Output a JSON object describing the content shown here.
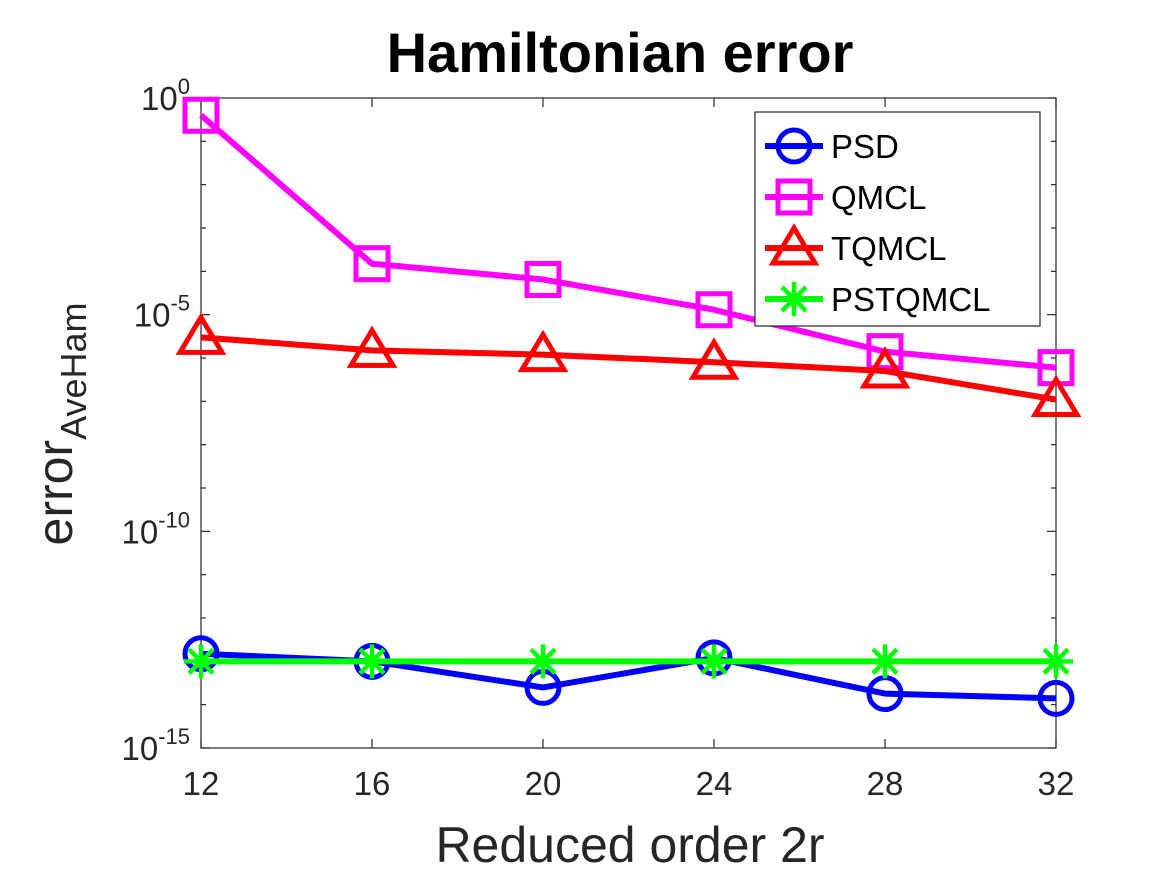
{
  "chart_data": {
    "type": "line",
    "title": "Hamiltonian error",
    "xlabel": "Reduced order 2r",
    "ylabel_main": "error",
    "ylabel_sub": "AveHam",
    "yscale": "log",
    "ylim": [
      1e-15,
      1
    ],
    "xlim": [
      12,
      32
    ],
    "x": [
      12,
      16,
      20,
      24,
      28,
      32
    ],
    "x_ticks": [
      "12",
      "16",
      "20",
      "24",
      "28",
      "32"
    ],
    "y_ticks": [
      {
        "base": "10",
        "exp": "0",
        "value": 1
      },
      {
        "base": "10",
        "exp": "-5",
        "value": 1e-05
      },
      {
        "base": "10",
        "exp": "-10",
        "value": 1e-10
      },
      {
        "base": "10",
        "exp": "-15",
        "value": 1e-15
      }
    ],
    "grid": false,
    "legend_position": "top-right",
    "series": [
      {
        "name": "PSD",
        "color": "#0000ff",
        "marker": "circle",
        "values": [
          1.5e-13,
          1e-13,
          2.5e-14,
          1.2e-13,
          1.8e-14,
          1.4e-14
        ]
      },
      {
        "name": "QMCL",
        "color": "#ff00ff",
        "marker": "square",
        "values": [
          0.4,
          0.00015,
          6.5e-05,
          1.3e-05,
          1.4e-06,
          6e-07
        ]
      },
      {
        "name": "TQMCL",
        "color": "#ff0000",
        "marker": "triangle",
        "values": [
          3e-06,
          1.5e-06,
          1.2e-06,
          8e-07,
          5e-07,
          1.1e-07
        ]
      },
      {
        "name": "PSTQMCL",
        "color": "#00ff00",
        "marker": "asterisk",
        "values": [
          1e-13,
          1e-13,
          1e-13,
          1e-13,
          1e-13,
          1e-13
        ]
      }
    ]
  }
}
